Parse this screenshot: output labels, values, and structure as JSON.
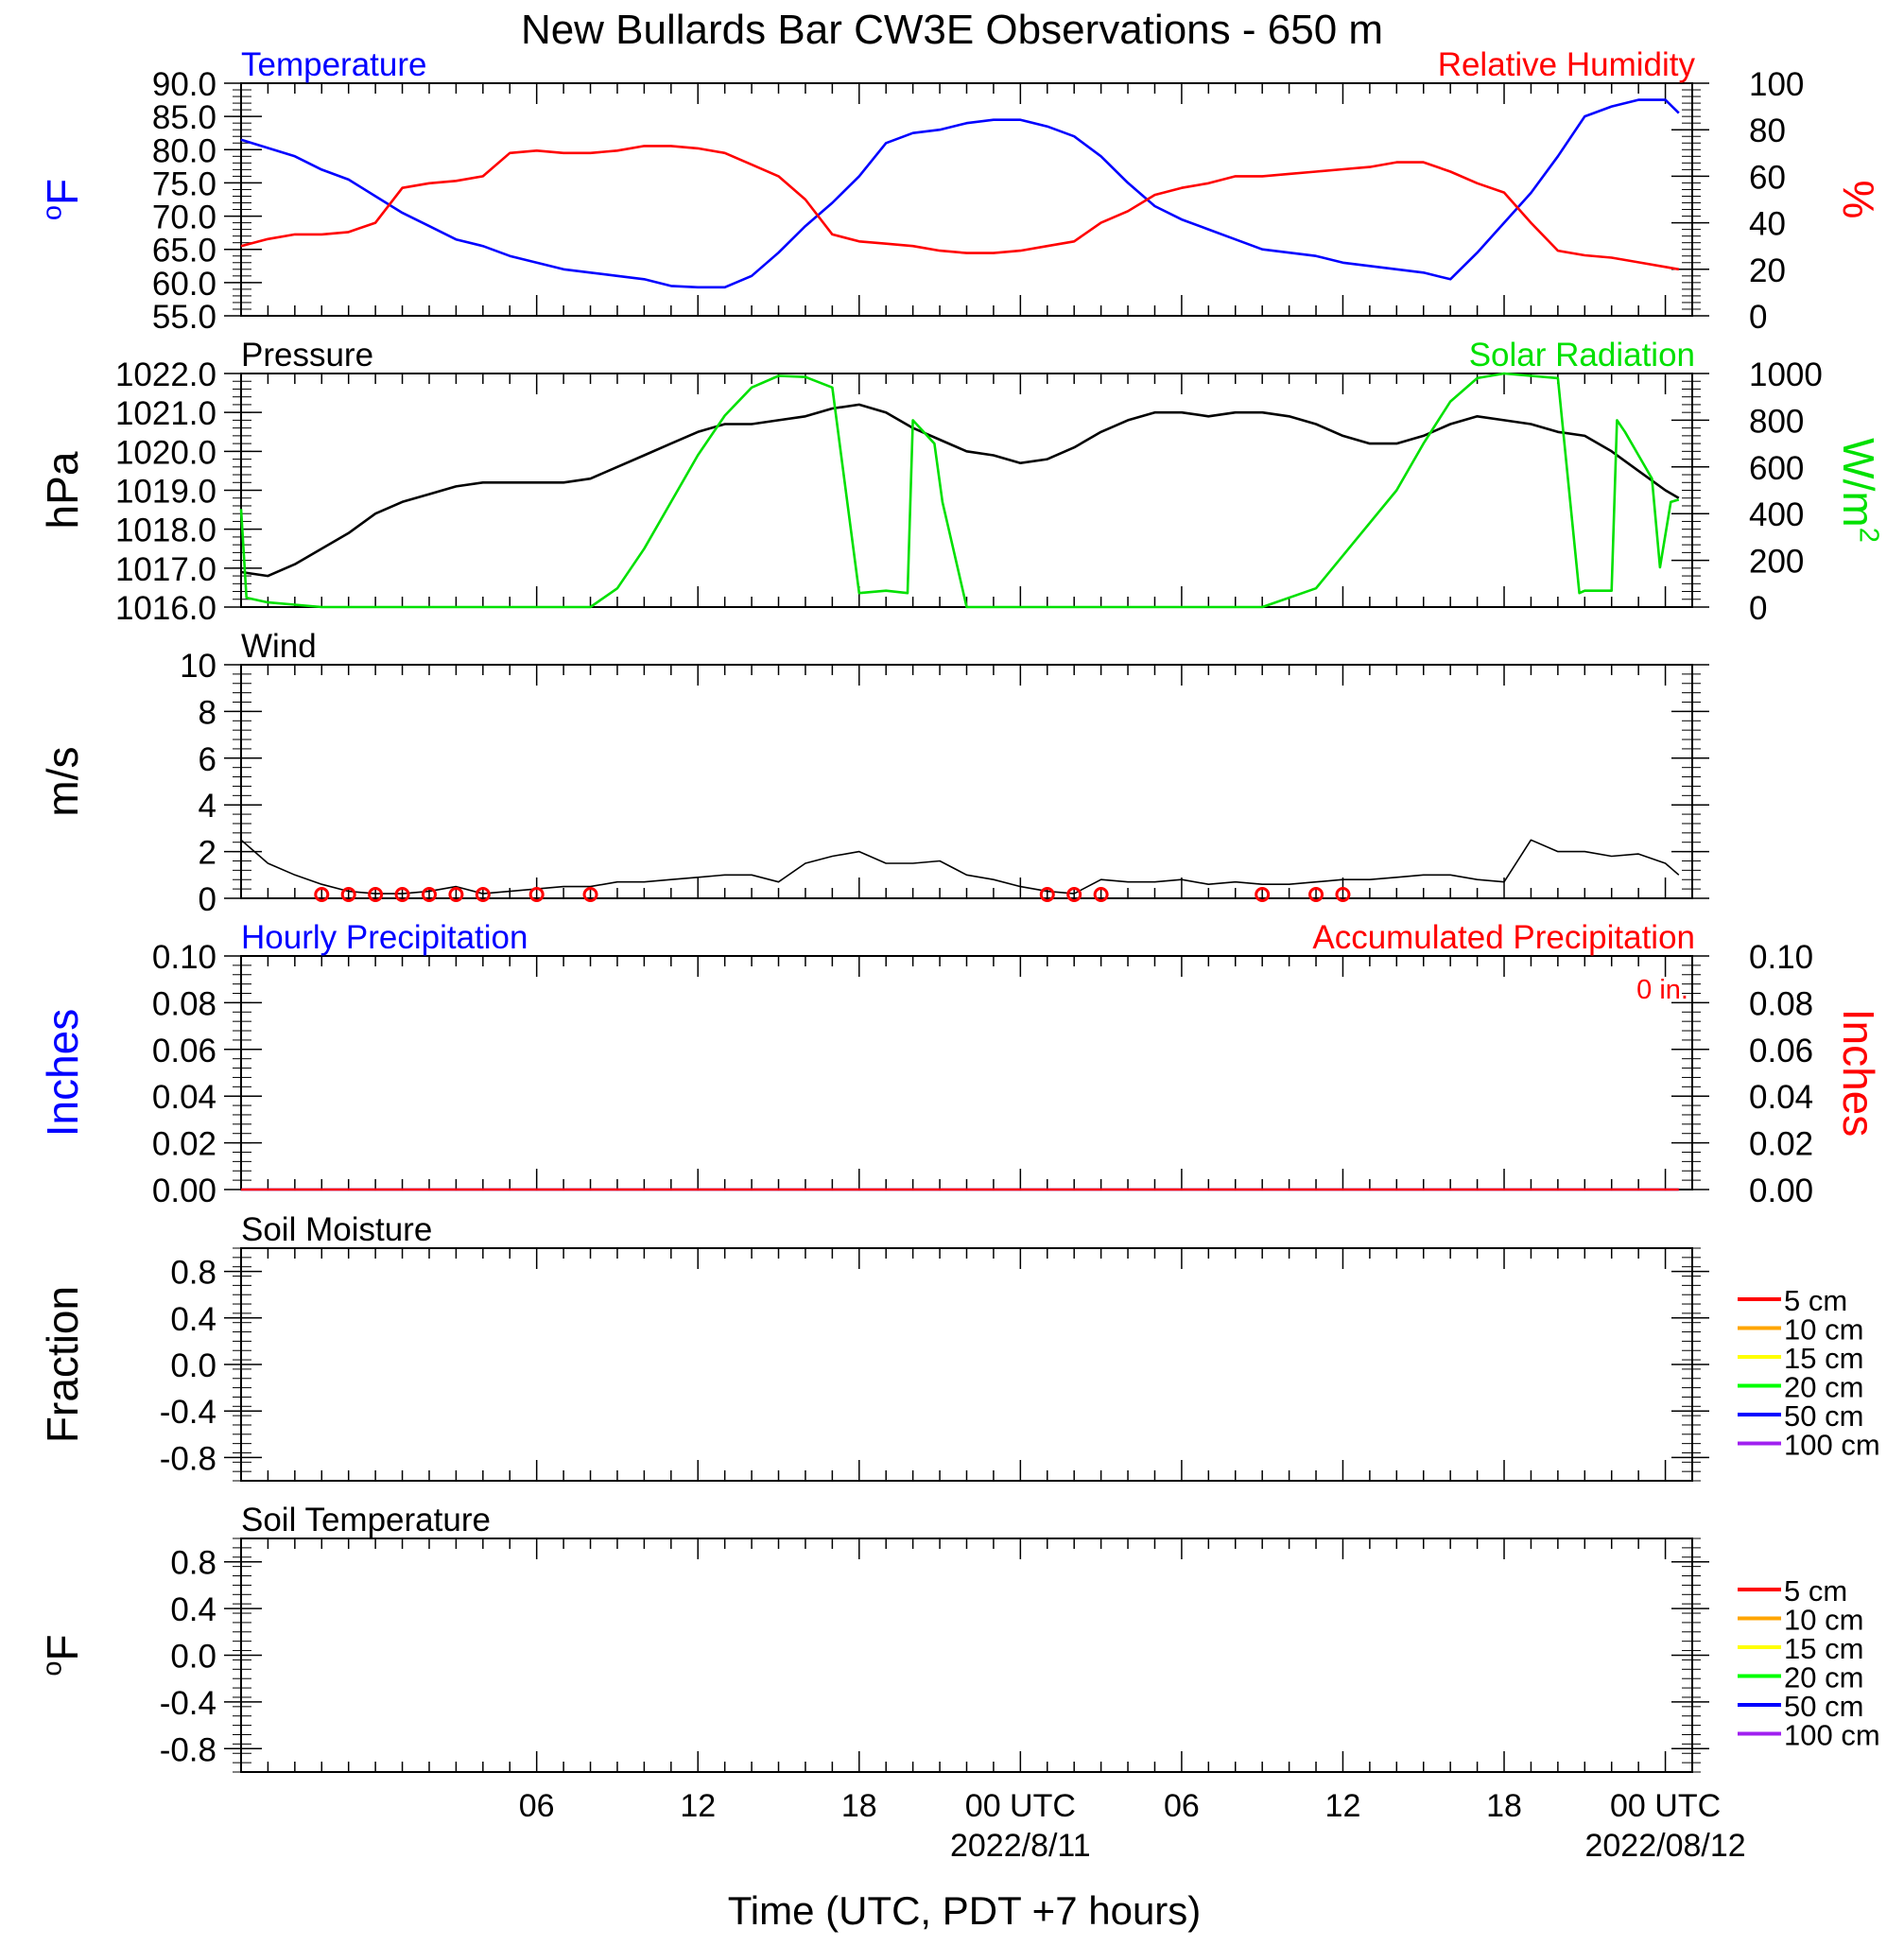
{
  "title": "New Bullards Bar CW3E Observations - 650 m",
  "xlabel": "Time (UTC, PDT +7 hours)",
  "x_ticks": [
    {
      "hour": 6,
      "label": "06"
    },
    {
      "hour": 12,
      "label": "12"
    },
    {
      "hour": 18,
      "label": "18"
    },
    {
      "hour": 24,
      "label": "00 UTC",
      "date": "2022/8/11"
    },
    {
      "hour": 30,
      "label": "06"
    },
    {
      "hour": 36,
      "label": "12"
    },
    {
      "hour": 42,
      "label": "18"
    },
    {
      "hour": 48,
      "label": "00 UTC",
      "date": "2022/08/12"
    }
  ],
  "x_range_hours": [
    -5,
    49
  ],
  "colors": {
    "temperature": "#0000ff",
    "humidity": "#ff0000",
    "pressure": "#000000",
    "solar": "#00e000",
    "wind": "#000000",
    "wind_barb": "#ff0000",
    "precip_hourly": "#0000ff",
    "precip_accum": "#ff0000"
  },
  "chart_data": [
    {
      "type": "line",
      "panel": "temperature_humidity",
      "left_title": "Temperature",
      "right_title": "Relative Humidity",
      "ylabel_left": "oF",
      "ylabel_right": "%",
      "ylim_left": [
        55,
        90
      ],
      "yticks_left": [
        "90.0",
        "85.0",
        "80.0",
        "75.0",
        "70.0",
        "65.0",
        "60.0",
        "55.0"
      ],
      "ylim_right": [
        0,
        100
      ],
      "yticks_right": [
        "100",
        "80",
        "60",
        "40",
        "20",
        "0"
      ],
      "series": [
        {
          "name": "Temperature",
          "axis": "left",
          "x": [
            -5,
            -3,
            -2,
            -1,
            0,
            1,
            2,
            3,
            4,
            5,
            6,
            7,
            8,
            9,
            10,
            11,
            12,
            13,
            14,
            15,
            16,
            17,
            18,
            19,
            20,
            21,
            22,
            23,
            24,
            25,
            26,
            27,
            28,
            29,
            30,
            31,
            32,
            33,
            34,
            35,
            36,
            37,
            38,
            39,
            40,
            41,
            42,
            43,
            44,
            45,
            46,
            47,
            48,
            48.5
          ],
          "values": [
            81.5,
            79,
            77,
            75.5,
            73,
            70.5,
            68.5,
            66.5,
            65.5,
            64,
            63,
            62,
            61.5,
            61,
            60.5,
            59.5,
            59.3,
            59.3,
            61,
            64.5,
            68.5,
            72,
            76,
            81,
            82.5,
            83,
            84,
            84.5,
            84.5,
            83.5,
            82,
            79,
            75,
            71.5,
            69.5,
            68,
            66.5,
            65,
            64.5,
            64,
            63,
            62.5,
            62,
            61.5,
            60.5,
            64.5,
            69,
            73.5,
            79,
            85,
            86.5,
            87.5,
            87.5,
            85.5
          ]
        },
        {
          "name": "Relative Humidity",
          "axis": "right",
          "x": [
            -5,
            -4,
            -3,
            -2,
            -1,
            0,
            1,
            2,
            3,
            4,
            5,
            6,
            7,
            8,
            9,
            10,
            11,
            12,
            13,
            14,
            15,
            16,
            17,
            18,
            19,
            20,
            21,
            22,
            23,
            24,
            25,
            26,
            27,
            28,
            29,
            30,
            31,
            32,
            33,
            34,
            35,
            36,
            37,
            38,
            39,
            40,
            41,
            42,
            43,
            44,
            45,
            46,
            47,
            48,
            48.5
          ],
          "values": [
            30,
            33,
            35,
            35,
            36,
            40,
            55,
            57,
            58,
            60,
            70,
            71,
            70,
            70,
            71,
            73,
            73,
            72,
            70,
            65,
            60,
            50,
            35,
            32,
            31,
            30,
            28,
            27,
            27,
            28,
            30,
            32,
            40,
            45,
            52,
            55,
            57,
            60,
            60,
            61,
            62,
            63,
            64,
            66,
            66,
            62,
            57,
            53,
            40,
            28,
            26,
            25,
            23,
            21,
            20
          ]
        }
      ]
    },
    {
      "type": "line",
      "panel": "pressure_solar",
      "left_title": "Pressure",
      "right_title": "Solar Radiation",
      "ylabel_left": "hPa",
      "ylabel_right": "W/m2",
      "ylim_left": [
        1016,
        1022
      ],
      "yticks_left": [
        "1022.0",
        "1021.0",
        "1020.0",
        "1019.0",
        "1018.0",
        "1017.0",
        "1016.0"
      ],
      "ylim_right": [
        0,
        1000
      ],
      "yticks_right": [
        "1000",
        "800",
        "600",
        "400",
        "200",
        "0"
      ],
      "series": [
        {
          "name": "Pressure",
          "axis": "left",
          "x": [
            -5,
            -4,
            -3,
            -2,
            -1,
            0,
            1,
            2,
            3,
            4,
            5,
            6,
            7,
            8,
            9,
            10,
            11,
            12,
            13,
            14,
            15,
            16,
            17,
            18,
            19,
            20,
            21,
            22,
            23,
            24,
            25,
            26,
            27,
            28,
            29,
            30,
            31,
            32,
            33,
            34,
            35,
            36,
            37,
            38,
            39,
            40,
            41,
            42,
            43,
            44,
            45,
            46,
            47,
            48,
            48.5
          ],
          "values": [
            1016.9,
            1016.8,
            1017.1,
            1017.5,
            1017.9,
            1018.4,
            1018.7,
            1018.9,
            1019.1,
            1019.2,
            1019.2,
            1019.2,
            1019.2,
            1019.3,
            1019.6,
            1019.9,
            1020.2,
            1020.5,
            1020.7,
            1020.7,
            1020.8,
            1020.9,
            1021.1,
            1021.2,
            1021.0,
            1020.6,
            1020.3,
            1020.0,
            1019.9,
            1019.7,
            1019.8,
            1020.1,
            1020.5,
            1020.8,
            1021.0,
            1021.0,
            1020.9,
            1021.0,
            1021.0,
            1020.9,
            1020.7,
            1020.4,
            1020.2,
            1020.2,
            1020.4,
            1020.7,
            1020.9,
            1020.8,
            1020.7,
            1020.5,
            1020.4,
            1020.0,
            1019.5,
            1019.0,
            1018.8
          ]
        },
        {
          "name": "Solar Radiation",
          "axis": "right",
          "x": [
            -5,
            -4.8,
            -4,
            -3,
            -2,
            0,
            2,
            6,
            8,
            9,
            10,
            11,
            12,
            13,
            14,
            15,
            16,
            17,
            18,
            19,
            19.8,
            20,
            20.8,
            21.1,
            21.3,
            22,
            23,
            23.5,
            24,
            26,
            33,
            35,
            38,
            39,
            40,
            41,
            42,
            43,
            44,
            44.8,
            45,
            46,
            46.2,
            46.5,
            47,
            47.5,
            47.8,
            48.2,
            48.5
          ],
          "values": [
            420,
            40,
            20,
            10,
            0,
            0,
            0,
            0,
            0,
            80,
            250,
            450,
            650,
            820,
            940,
            990,
            985,
            940,
            60,
            70,
            60,
            800,
            700,
            450,
            350,
            0,
            0,
            0,
            0,
            0,
            0,
            80,
            500,
            700,
            880,
            980,
            1000,
            990,
            980,
            60,
            70,
            70,
            800,
            750,
            650,
            550,
            170,
            450,
            460
          ]
        }
      ]
    },
    {
      "type": "line",
      "panel": "wind",
      "left_title": "Wind",
      "ylabel_left": "m/s",
      "ylim_left": [
        0,
        10
      ],
      "yticks_left": [
        "10",
        "8",
        "6",
        "4",
        "2",
        "0"
      ],
      "series": [
        {
          "name": "Wind",
          "axis": "left",
          "x": [
            -5,
            -4,
            -3,
            -2,
            -1,
            0,
            1,
            2,
            3,
            4,
            5,
            6,
            7,
            8,
            9,
            10,
            11,
            12,
            13,
            14,
            15,
            16,
            17,
            18,
            19,
            20,
            21,
            22,
            23,
            24,
            25,
            26,
            27,
            28,
            29,
            30,
            31,
            32,
            33,
            34,
            35,
            36,
            37,
            38,
            39,
            40,
            41,
            42,
            43,
            44,
            45,
            46,
            47,
            48,
            48.5
          ],
          "values": [
            2.5,
            1.5,
            1.0,
            0.6,
            0.3,
            0.2,
            0.2,
            0.3,
            0.5,
            0.2,
            0.3,
            0.4,
            0.5,
            0.5,
            0.7,
            0.7,
            0.8,
            0.9,
            1.0,
            1.0,
            0.7,
            1.5,
            1.8,
            2.0,
            1.5,
            1.5,
            1.6,
            1.0,
            0.8,
            0.5,
            0.3,
            0.2,
            0.8,
            0.7,
            0.7,
            0.8,
            0.6,
            0.7,
            0.6,
            0.6,
            0.7,
            0.8,
            0.8,
            0.9,
            1.0,
            1.0,
            0.8,
            0.7,
            2.5,
            2.0,
            2.0,
            1.8,
            1.9,
            1.5,
            1.0
          ]
        }
      ],
      "calm_markers_hours": [
        -2,
        -1,
        0,
        1,
        2,
        3,
        4,
        6,
        8,
        25,
        26,
        27,
        33,
        35,
        36
      ]
    },
    {
      "type": "line",
      "panel": "precipitation",
      "left_title": "Hourly Precipitation",
      "right_title": "Accumulated Precipitation",
      "accum_label": "0 in.",
      "ylabel_left": "Inches",
      "ylabel_right": "Inches",
      "ylim_left": [
        0,
        0.1
      ],
      "yticks_left": [
        "0.10",
        "0.08",
        "0.06",
        "0.04",
        "0.02",
        "0.00"
      ],
      "ylim_right": [
        0,
        0.1
      ],
      "yticks_right": [
        "0.10",
        "0.08",
        "0.06",
        "0.04",
        "0.02",
        "0.00"
      ],
      "series": [
        {
          "name": "Hourly Precipitation",
          "axis": "left",
          "x": [
            -5,
            48.5
          ],
          "values": [
            0,
            0
          ]
        },
        {
          "name": "Accumulated Precipitation",
          "axis": "right",
          "x": [
            -5,
            48.5
          ],
          "values": [
            0,
            0
          ]
        }
      ]
    },
    {
      "type": "line",
      "panel": "soil_moisture",
      "left_title": "Soil Moisture",
      "ylabel_left": "Fraction",
      "ylim_left": [
        -1,
        1
      ],
      "yticks_left": [
        "0.8",
        "0.4",
        "0.0",
        "-0.4",
        "-0.8"
      ],
      "legend": [
        {
          "label": "5 cm",
          "color": "#ff0000"
        },
        {
          "label": "10 cm",
          "color": "#ffa500"
        },
        {
          "label": "15 cm",
          "color": "#ffff00"
        },
        {
          "label": "20 cm",
          "color": "#00ff00"
        },
        {
          "label": "50 cm",
          "color": "#0000ff"
        },
        {
          "label": "100 cm",
          "color": "#a020f0"
        }
      ],
      "series": []
    },
    {
      "type": "line",
      "panel": "soil_temperature",
      "left_title": "Soil Temperature",
      "ylabel_left": "oF",
      "ylim_left": [
        -1,
        1
      ],
      "yticks_left": [
        "0.8",
        "0.4",
        "0.0",
        "-0.4",
        "-0.8"
      ],
      "legend": [
        {
          "label": "5 cm",
          "color": "#ff0000"
        },
        {
          "label": "10 cm",
          "color": "#ffa500"
        },
        {
          "label": "15 cm",
          "color": "#ffff00"
        },
        {
          "label": "20 cm",
          "color": "#00ff00"
        },
        {
          "label": "50 cm",
          "color": "#0000ff"
        },
        {
          "label": "100 cm",
          "color": "#a020f0"
        }
      ],
      "series": []
    }
  ]
}
